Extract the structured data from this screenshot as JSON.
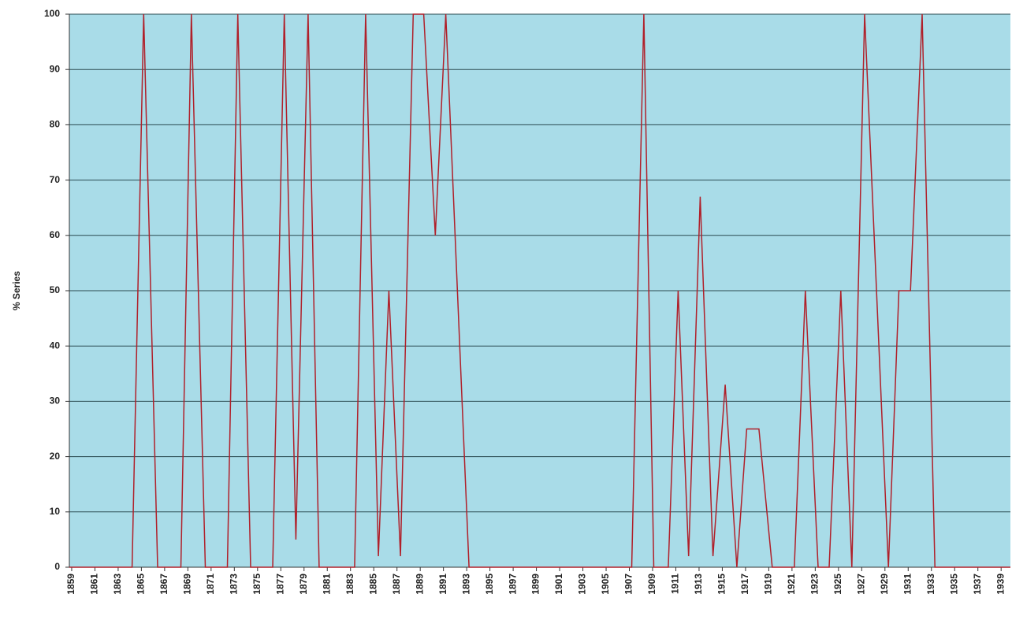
{
  "chart_data": {
    "type": "line",
    "y_label": "% Series",
    "x": [
      1858.8,
      1864.2,
      1865.2,
      1866.4,
      1868.4,
      1869.3,
      1870.5,
      1872.4,
      1873.3,
      1874.4,
      1876.3,
      1877.3,
      1878.3,
      1879.35,
      1880.3,
      1883.35,
      1884.3,
      1885.4,
      1886.3,
      1887.3,
      1888.4,
      1889.3,
      1890.3,
      1891.2,
      1893.2,
      1907.2,
      1908.25,
      1909.1,
      1910.35,
      1911.2,
      1912.1,
      1913.1,
      1914.2,
      1915.25,
      1916.25,
      1917.1,
      1918.15,
      1919.3,
      1921.2,
      1922.15,
      1923.25,
      1924.2,
      1925.2,
      1926.15,
      1927.25,
      1929.3,
      1930.2,
      1931.2,
      1932.2,
      1933.3,
      1939.8
    ],
    "values": [
      0,
      0,
      100,
      0,
      0,
      100,
      0,
      0,
      100,
      0,
      0,
      100,
      5,
      100,
      0,
      0,
      100,
      2,
      50,
      2,
      100,
      100,
      60,
      100,
      0,
      0,
      100,
      0,
      0,
      50,
      2,
      67,
      2,
      33,
      0,
      25,
      25,
      0,
      0,
      50,
      0,
      0,
      50,
      0,
      100,
      0,
      50,
      50,
      100,
      0,
      0
    ],
    "color": "#b0202a",
    "xlim": [
      1858.8,
      1939.8
    ],
    "xticks": [
      1859,
      1861,
      1863,
      1865,
      1867,
      1869,
      1871,
      1873,
      1875,
      1877,
      1879,
      1881,
      1883,
      1885,
      1887,
      1889,
      1891,
      1893,
      1895,
      1897,
      1899,
      1901,
      1903,
      1905,
      1907,
      1909,
      1911,
      1913,
      1915,
      1917,
      1919,
      1921,
      1923,
      1925,
      1927,
      1929,
      1931,
      1933,
      1935,
      1937,
      1939
    ],
    "ylim": [
      0,
      100
    ],
    "yticks": [
      0,
      10,
      20,
      30,
      40,
      50,
      60,
      70,
      80,
      90,
      100
    ],
    "grid": true
  }
}
